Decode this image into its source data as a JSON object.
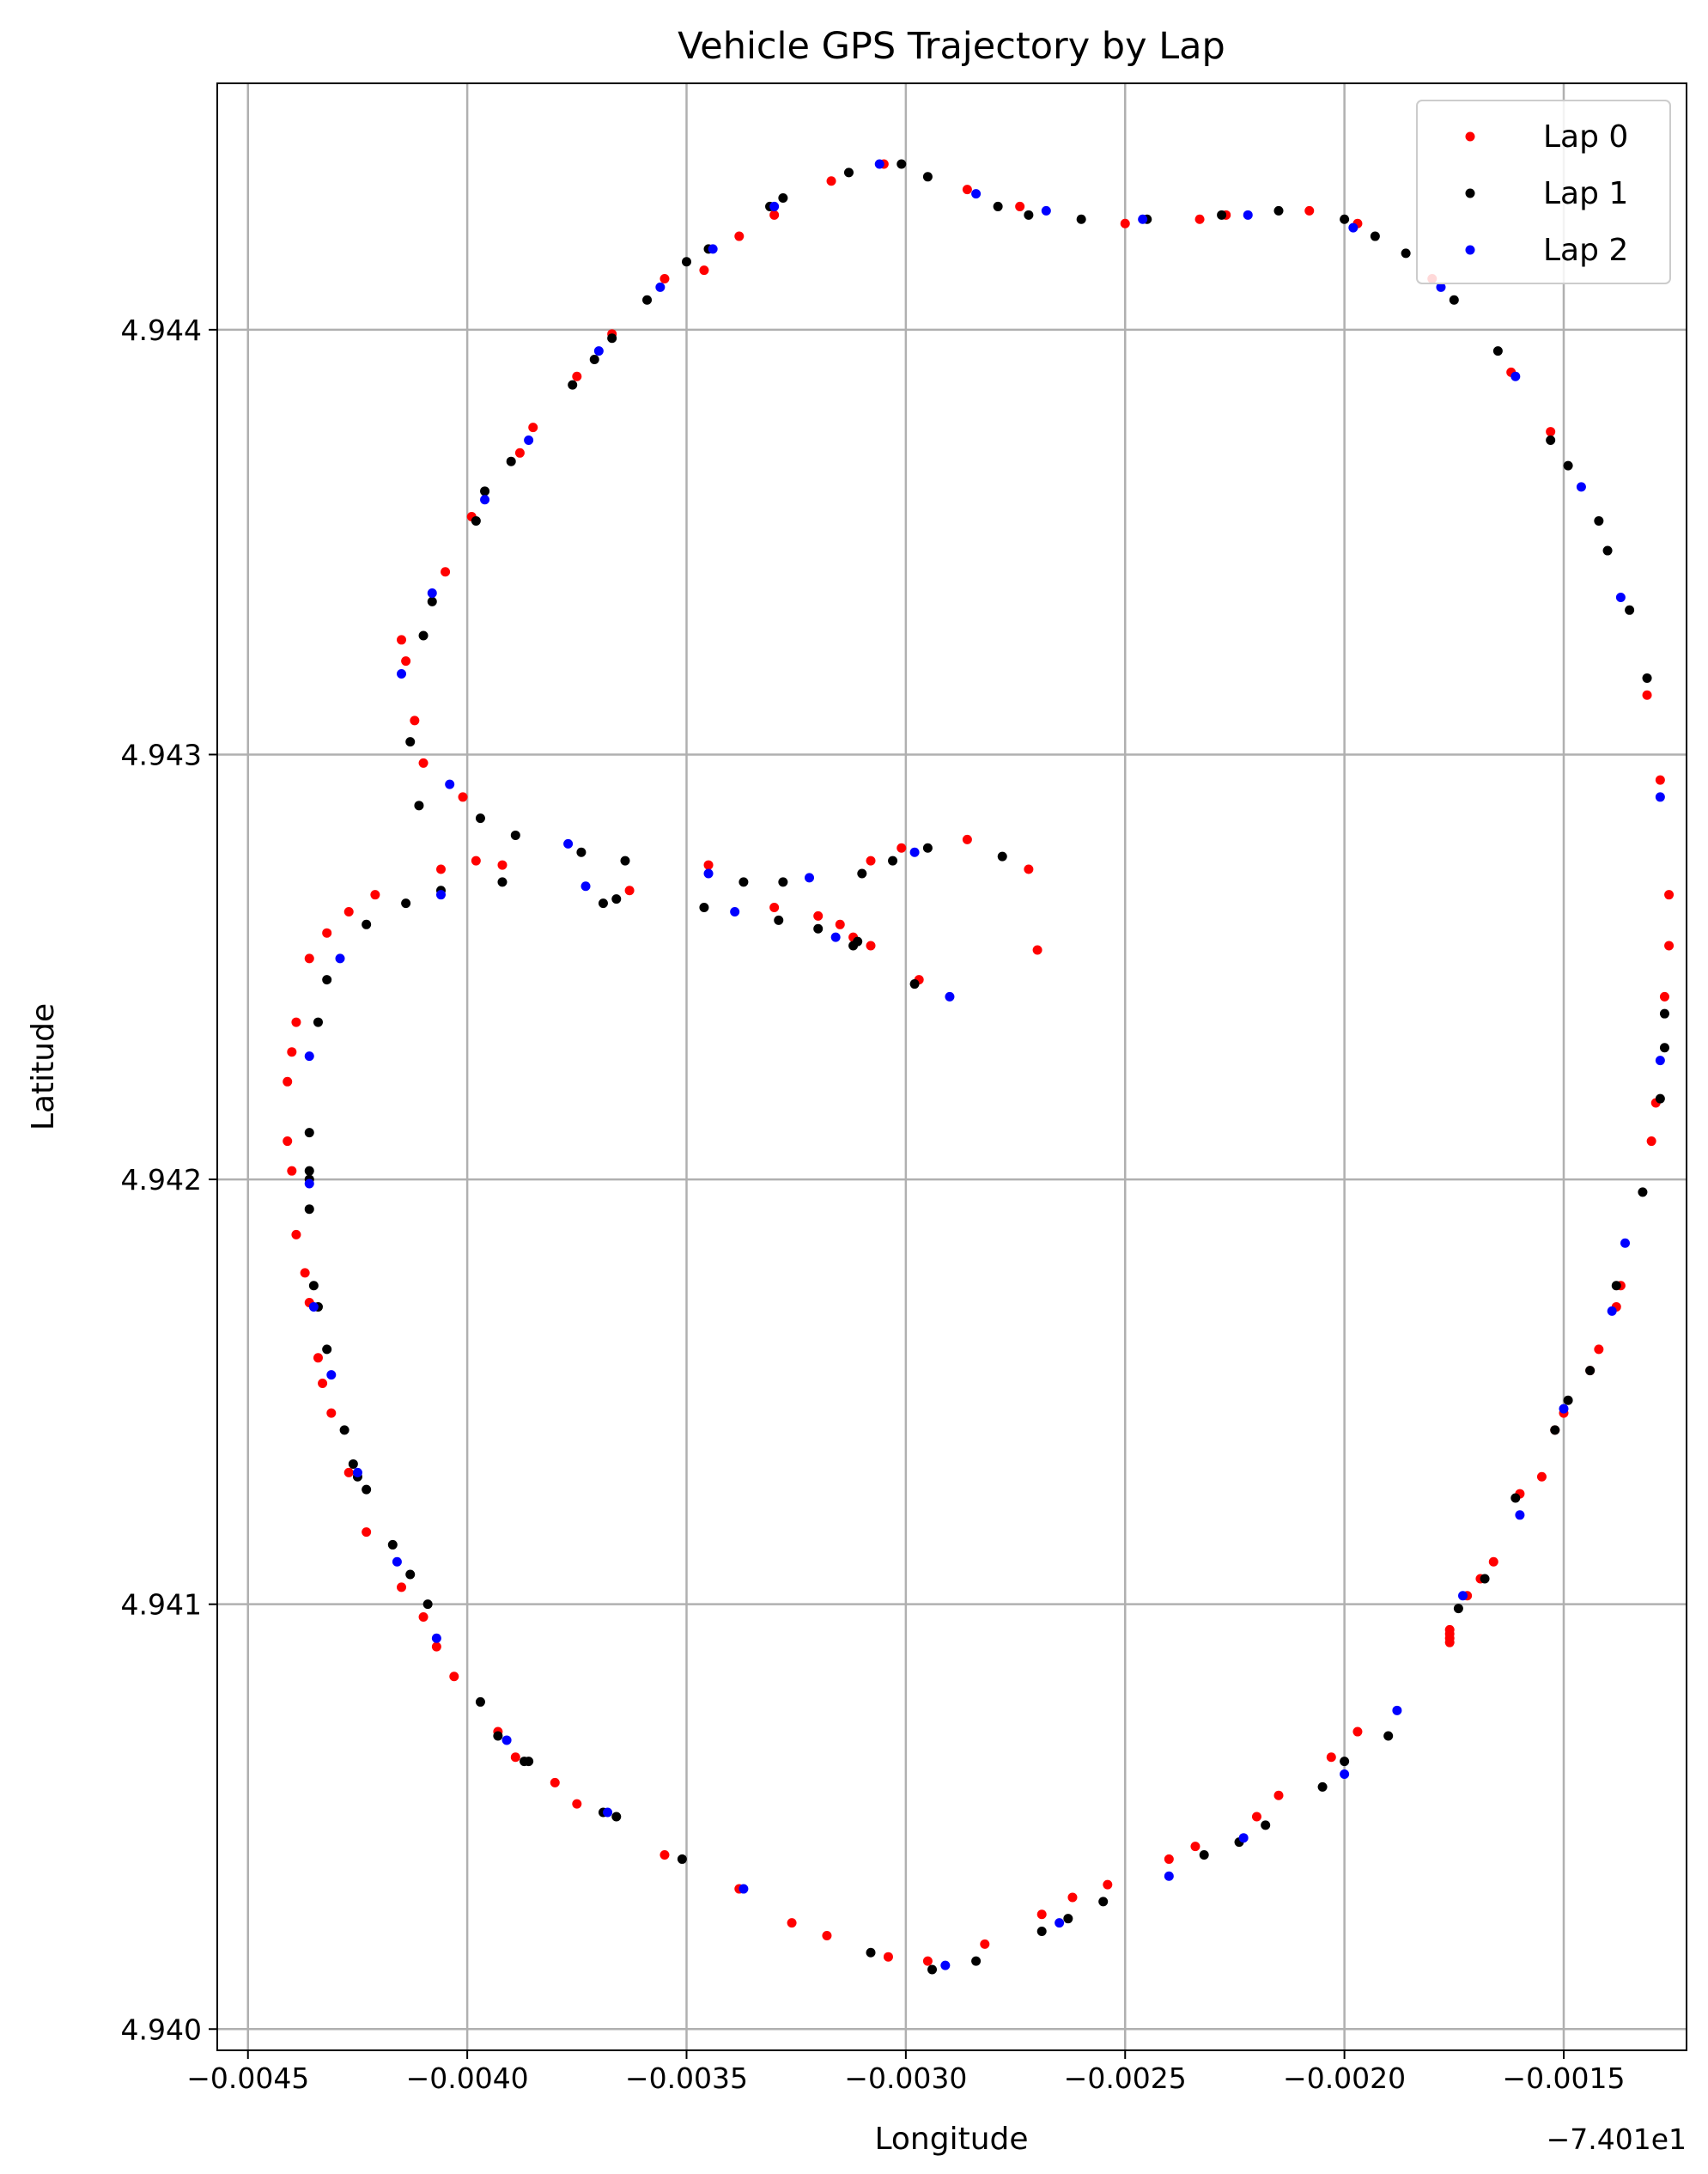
{
  "chart_data": {
    "type": "scatter",
    "title": "Vehicle GPS Trajectory by Lap",
    "xlabel": "Longitude",
    "ylabel": "Latitude",
    "x_offset_label": "−7.401e1",
    "xlim": [
      -0.00457,
      -0.00122
    ],
    "ylim": [
      4.93995,
      4.94458
    ],
    "xticks": [
      -0.0045,
      -0.004,
      -0.0035,
      -0.003,
      -0.0025,
      -0.002,
      -0.0015
    ],
    "xtick_labels": [
      "−0.0045",
      "−0.0040",
      "−0.0035",
      "−0.0030",
      "−0.0025",
      "−0.0020",
      "−0.0015"
    ],
    "yticks": [
      4.94,
      4.941,
      4.942,
      4.943,
      4.944
    ],
    "ytick_labels": [
      "4.940",
      "4.941",
      "4.942",
      "4.943",
      "4.944"
    ],
    "grid": true,
    "legend_position": "top-right",
    "series": [
      {
        "name": "Lap 0",
        "color": "#ff0000",
        "points": [
          [
            -0.00305,
            4.94439
          ],
          [
            -0.00286,
            4.94433
          ],
          [
            -0.00274,
            4.94429
          ],
          [
            -0.0025,
            4.94425
          ],
          [
            -0.00233,
            4.94426
          ],
          [
            -0.00227,
            4.94427
          ],
          [
            -0.00208,
            4.94428
          ],
          [
            -0.00197,
            4.94425
          ],
          [
            -0.0018,
            4.94412
          ],
          [
            -0.00162,
            4.9439
          ],
          [
            -0.00153,
            4.94376
          ],
          [
            -0.00131,
            4.94314
          ],
          [
            -0.00128,
            4.94294
          ],
          [
            -0.00126,
            4.94267
          ],
          [
            -0.00126,
            4.94255
          ],
          [
            -0.00127,
            4.94243
          ],
          [
            -0.00129,
            4.94218
          ],
          [
            -0.0013,
            4.94209
          ],
          [
            -0.00137,
            4.94175
          ],
          [
            -0.00138,
            4.9417
          ],
          [
            -0.00142,
            4.9416
          ],
          [
            -0.00144,
            4.94155
          ],
          [
            -0.0015,
            4.94145
          ],
          [
            -0.00152,
            4.94141
          ],
          [
            -0.00155,
            4.9413
          ],
          [
            -0.0016,
            4.94126
          ],
          [
            -0.00166,
            4.9411
          ],
          [
            -0.00169,
            4.94106
          ],
          [
            -0.00172,
            4.94102
          ],
          [
            -0.00176,
            4.94094
          ],
          [
            -0.00176,
            4.94093
          ],
          [
            -0.00176,
            4.94092
          ],
          [
            -0.00176,
            4.94091
          ],
          [
            -0.00197,
            4.9407
          ],
          [
            -0.00203,
            4.94064
          ],
          [
            -0.00215,
            4.94055
          ],
          [
            -0.0022,
            4.9405
          ],
          [
            -0.00234,
            4.94043
          ],
          [
            -0.0024,
            4.9404
          ],
          [
            -0.00254,
            4.94034
          ],
          [
            -0.00262,
            4.94031
          ],
          [
            -0.00269,
            4.94027
          ],
          [
            -0.00282,
            4.9402
          ],
          [
            -0.00295,
            4.94016
          ],
          [
            -0.00304,
            4.94017
          ],
          [
            -0.00318,
            4.94022
          ],
          [
            -0.00326,
            4.94025
          ],
          [
            -0.00338,
            4.94033
          ],
          [
            -0.00355,
            4.94041
          ],
          [
            -0.00375,
            4.94053
          ],
          [
            -0.0038,
            4.94058
          ],
          [
            -0.00389,
            4.94064
          ],
          [
            -0.00393,
            4.9407
          ],
          [
            -0.00403,
            4.94083
          ],
          [
            -0.00407,
            4.9409
          ],
          [
            -0.0041,
            4.94097
          ],
          [
            -0.00415,
            4.94104
          ],
          [
            -0.00423,
            4.94117
          ],
          [
            -0.00427,
            4.94131
          ],
          [
            -0.00431,
            4.94145
          ],
          [
            -0.00433,
            4.94152
          ],
          [
            -0.00434,
            4.94158
          ],
          [
            -0.00436,
            4.94171
          ],
          [
            -0.00437,
            4.94178
          ],
          [
            -0.00439,
            4.94187
          ],
          [
            -0.0044,
            4.94202
          ],
          [
            -0.00441,
            4.94209
          ],
          [
            -0.00441,
            4.94223
          ],
          [
            -0.0044,
            4.9423
          ],
          [
            -0.00439,
            4.94237
          ],
          [
            -0.00436,
            4.94252
          ],
          [
            -0.00432,
            4.94258
          ],
          [
            -0.00427,
            4.94263
          ],
          [
            -0.00421,
            4.94267
          ],
          [
            -0.00406,
            4.94273
          ],
          [
            -0.00398,
            4.94275
          ],
          [
            -0.00392,
            4.94274
          ],
          [
            -0.00363,
            4.94268
          ],
          [
            -0.00345,
            4.94274
          ],
          [
            -0.0033,
            4.94264
          ],
          [
            -0.0032,
            4.94262
          ],
          [
            -0.00315,
            4.9426
          ],
          [
            -0.00312,
            4.94257
          ],
          [
            -0.00308,
            4.94255
          ],
          [
            -0.00308,
            4.94275
          ],
          [
            -0.00301,
            4.94278
          ],
          [
            -0.00286,
            4.9428
          ],
          [
            -0.00272,
            4.94273
          ],
          [
            -0.0027,
            4.94254
          ],
          [
            -0.00297,
            4.94247
          ],
          [
            -0.00401,
            4.9429
          ],
          [
            -0.0041,
            4.94298
          ],
          [
            -0.00412,
            4.94308
          ],
          [
            -0.00414,
            4.94322
          ],
          [
            -0.00415,
            4.94327
          ],
          [
            -0.00405,
            4.94343
          ],
          [
            -0.00399,
            4.94356
          ],
          [
            -0.00388,
            4.94371
          ],
          [
            -0.00385,
            4.94377
          ],
          [
            -0.00375,
            4.94389
          ],
          [
            -0.00367,
            4.94399
          ],
          [
            -0.00355,
            4.94412
          ],
          [
            -0.00346,
            4.94414
          ],
          [
            -0.00338,
            4.94422
          ],
          [
            -0.0033,
            4.94427
          ],
          [
            -0.00317,
            4.94435
          ]
        ]
      },
      {
        "name": "Lap 1",
        "color": "#000000",
        "points": [
          [
            -0.00313,
            4.94437
          ],
          [
            -0.00301,
            4.94439
          ],
          [
            -0.00295,
            4.94436
          ],
          [
            -0.00279,
            4.94429
          ],
          [
            -0.00272,
            4.94427
          ],
          [
            -0.0026,
            4.94426
          ],
          [
            -0.00245,
            4.94426
          ],
          [
            -0.00228,
            4.94427
          ],
          [
            -0.00215,
            4.94428
          ],
          [
            -0.002,
            4.94426
          ],
          [
            -0.00193,
            4.94422
          ],
          [
            -0.00186,
            4.94418
          ],
          [
            -0.00175,
            4.94407
          ],
          [
            -0.00165,
            4.94395
          ],
          [
            -0.00153,
            4.94374
          ],
          [
            -0.00149,
            4.94368
          ],
          [
            -0.00142,
            4.94355
          ],
          [
            -0.0014,
            4.94348
          ],
          [
            -0.00135,
            4.94334
          ],
          [
            -0.00131,
            4.94318
          ],
          [
            -0.00127,
            4.94239
          ],
          [
            -0.00127,
            4.94231
          ],
          [
            -0.00128,
            4.94219
          ],
          [
            -0.00132,
            4.94197
          ],
          [
            -0.00138,
            4.94175
          ],
          [
            -0.00144,
            4.94155
          ],
          [
            -0.00149,
            4.94148
          ],
          [
            -0.00152,
            4.94141
          ],
          [
            -0.00161,
            4.94125
          ],
          [
            -0.00168,
            4.94106
          ],
          [
            -0.00174,
            4.94099
          ],
          [
            -0.0019,
            4.94069
          ],
          [
            -0.002,
            4.94063
          ],
          [
            -0.00205,
            4.94057
          ],
          [
            -0.00218,
            4.94048
          ],
          [
            -0.00224,
            4.94044
          ],
          [
            -0.00232,
            4.94041
          ],
          [
            -0.00255,
            4.9403
          ],
          [
            -0.00263,
            4.94026
          ],
          [
            -0.00269,
            4.94023
          ],
          [
            -0.00284,
            4.94016
          ],
          [
            -0.00294,
            4.94014
          ],
          [
            -0.00308,
            4.94018
          ],
          [
            -0.00351,
            4.9404
          ],
          [
            -0.00366,
            4.9405
          ],
          [
            -0.00369,
            4.94051
          ],
          [
            -0.00386,
            4.94063
          ],
          [
            -0.00387,
            4.94063
          ],
          [
            -0.00393,
            4.94069
          ],
          [
            -0.00397,
            4.94077
          ],
          [
            -0.00409,
            4.941
          ],
          [
            -0.00413,
            4.94107
          ],
          [
            -0.00417,
            4.94114
          ],
          [
            -0.00423,
            4.94127
          ],
          [
            -0.00425,
            4.9413
          ],
          [
            -0.00426,
            4.94133
          ],
          [
            -0.00428,
            4.94141
          ],
          [
            -0.00432,
            4.9416
          ],
          [
            -0.00434,
            4.9417
          ],
          [
            -0.00435,
            4.94175
          ],
          [
            -0.00436,
            4.94193
          ],
          [
            -0.00436,
            4.942
          ],
          [
            -0.00436,
            4.94202
          ],
          [
            -0.00436,
            4.94211
          ],
          [
            -0.00434,
            4.94237
          ],
          [
            -0.00432,
            4.94247
          ],
          [
            -0.00423,
            4.9426
          ],
          [
            -0.00414,
            4.94265
          ],
          [
            -0.00406,
            4.94268
          ],
          [
            -0.00392,
            4.9427
          ],
          [
            -0.00389,
            4.94281
          ],
          [
            -0.00397,
            4.94285
          ],
          [
            -0.00374,
            4.94277
          ],
          [
            -0.00364,
            4.94275
          ],
          [
            -0.00366,
            4.94266
          ],
          [
            -0.00369,
            4.94265
          ],
          [
            -0.00346,
            4.94264
          ],
          [
            -0.00337,
            4.9427
          ],
          [
            -0.00328,
            4.9427
          ],
          [
            -0.00329,
            4.94261
          ],
          [
            -0.0032,
            4.94259
          ],
          [
            -0.00311,
            4.94256
          ],
          [
            -0.00312,
            4.94255
          ],
          [
            -0.0031,
            4.94272
          ],
          [
            -0.00303,
            4.94275
          ],
          [
            -0.00295,
            4.94278
          ],
          [
            -0.00278,
            4.94276
          ],
          [
            -0.00298,
            4.94246
          ],
          [
            -0.00411,
            4.94288
          ],
          [
            -0.00413,
            4.94303
          ],
          [
            -0.0041,
            4.94328
          ],
          [
            -0.00408,
            4.94336
          ],
          [
            -0.00396,
            4.94362
          ],
          [
            -0.00398,
            4.94355
          ],
          [
            -0.0039,
            4.94369
          ],
          [
            -0.00376,
            4.94387
          ],
          [
            -0.00371,
            4.94393
          ],
          [
            -0.00367,
            4.94398
          ],
          [
            -0.00359,
            4.94407
          ],
          [
            -0.0035,
            4.94416
          ],
          [
            -0.00345,
            4.94419
          ],
          [
            -0.00331,
            4.94429
          ],
          [
            -0.00328,
            4.94431
          ]
        ]
      },
      {
        "name": "Lap 2",
        "color": "#0000ff",
        "points": [
          [
            -0.00306,
            4.94439
          ],
          [
            -0.00284,
            4.94432
          ],
          [
            -0.00268,
            4.94428
          ],
          [
            -0.00246,
            4.94426
          ],
          [
            -0.00222,
            4.94427
          ],
          [
            -0.00198,
            4.94424
          ],
          [
            -0.00178,
            4.9441
          ],
          [
            -0.00161,
            4.94389
          ],
          [
            -0.00146,
            4.94363
          ],
          [
            -0.00137,
            4.94337
          ],
          [
            -0.00128,
            4.9429
          ],
          [
            -0.00128,
            4.94228
          ],
          [
            -0.00136,
            4.94185
          ],
          [
            -0.00139,
            4.94169
          ],
          [
            -0.0015,
            4.94146
          ],
          [
            -0.0016,
            4.94121
          ],
          [
            -0.00173,
            4.94102
          ],
          [
            -0.00188,
            4.94075
          ],
          [
            -0.002,
            4.9406
          ],
          [
            -0.00223,
            4.94045
          ],
          [
            -0.0024,
            4.94036
          ],
          [
            -0.00265,
            4.94025
          ],
          [
            -0.00291,
            4.94015
          ],
          [
            -0.00337,
            4.94033
          ],
          [
            -0.00368,
            4.94051
          ],
          [
            -0.00391,
            4.94068
          ],
          [
            -0.00407,
            4.94092
          ],
          [
            -0.00416,
            4.9411
          ],
          [
            -0.00425,
            4.94131
          ],
          [
            -0.00431,
            4.94154
          ],
          [
            -0.00435,
            4.9417
          ],
          [
            -0.00436,
            4.94199
          ],
          [
            -0.00436,
            4.94229
          ],
          [
            -0.00429,
            4.94252
          ],
          [
            -0.00406,
            4.94267
          ],
          [
            -0.00404,
            4.94293
          ],
          [
            -0.00377,
            4.94279
          ],
          [
            -0.00373,
            4.94269
          ],
          [
            -0.00345,
            4.94272
          ],
          [
            -0.00339,
            4.94263
          ],
          [
            -0.00322,
            4.94271
          ],
          [
            -0.00316,
            4.94257
          ],
          [
            -0.00298,
            4.94277
          ],
          [
            -0.0029,
            4.94243
          ],
          [
            -0.00415,
            4.94319
          ],
          [
            -0.00408,
            4.94338
          ],
          [
            -0.00396,
            4.9436
          ],
          [
            -0.00386,
            4.94374
          ],
          [
            -0.0037,
            4.94395
          ],
          [
            -0.00356,
            4.9441
          ],
          [
            -0.00344,
            4.94419
          ],
          [
            -0.0033,
            4.94429
          ]
        ]
      }
    ]
  }
}
